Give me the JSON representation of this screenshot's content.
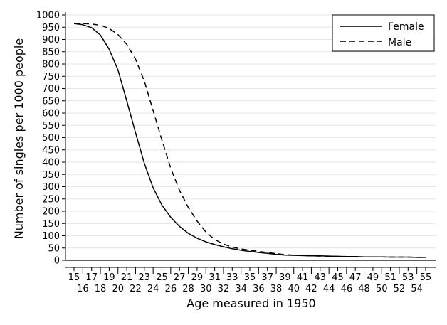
{
  "chart_data": {
    "type": "line",
    "xlabel": "Age measured in 1950",
    "ylabel": "Number of singles per 1000 people",
    "xlim": [
      15,
      55
    ],
    "ylim": [
      0,
      1000
    ],
    "x_ticks": [
      15,
      16,
      17,
      18,
      19,
      20,
      21,
      22,
      23,
      24,
      25,
      26,
      27,
      28,
      29,
      30,
      31,
      32,
      33,
      34,
      35,
      36,
      37,
      38,
      39,
      40,
      41,
      42,
      43,
      44,
      45,
      46,
      47,
      48,
      49,
      50,
      51,
      52,
      53,
      54,
      55
    ],
    "y_ticks": [
      0,
      50,
      100,
      150,
      200,
      250,
      300,
      350,
      400,
      450,
      500,
      550,
      600,
      650,
      700,
      750,
      800,
      850,
      900,
      950,
      1000
    ],
    "grid": "horizontal",
    "legend_position": "top-right",
    "x": [
      15,
      16,
      17,
      18,
      19,
      20,
      21,
      22,
      23,
      24,
      25,
      26,
      27,
      28,
      29,
      30,
      31,
      32,
      33,
      34,
      35,
      36,
      37,
      38,
      39,
      40,
      41,
      42,
      43,
      44,
      45,
      46,
      47,
      48,
      49,
      50,
      51,
      52,
      53,
      54,
      55
    ],
    "series": [
      {
        "name": "Female",
        "style": "solid",
        "values": [
          965,
          960,
          948,
          918,
          860,
          775,
          650,
          520,
          395,
          295,
          225,
          175,
          138,
          110,
          90,
          75,
          64,
          55,
          47,
          41,
          36,
          32,
          28,
          24,
          21,
          20,
          19,
          18,
          18,
          17,
          16,
          15,
          15,
          14,
          14,
          14,
          13,
          13,
          13,
          12,
          12
        ]
      },
      {
        "name": "Male",
        "style": "dashed",
        "values": [
          965,
          965,
          963,
          958,
          945,
          920,
          880,
          820,
          730,
          610,
          490,
          375,
          285,
          215,
          160,
          115,
          85,
          66,
          54,
          46,
          41,
          36,
          32,
          27,
          23,
          21,
          19,
          18,
          17,
          16,
          16,
          15,
          15,
          14,
          14,
          14,
          13,
          13,
          13,
          12,
          12
        ]
      }
    ]
  }
}
